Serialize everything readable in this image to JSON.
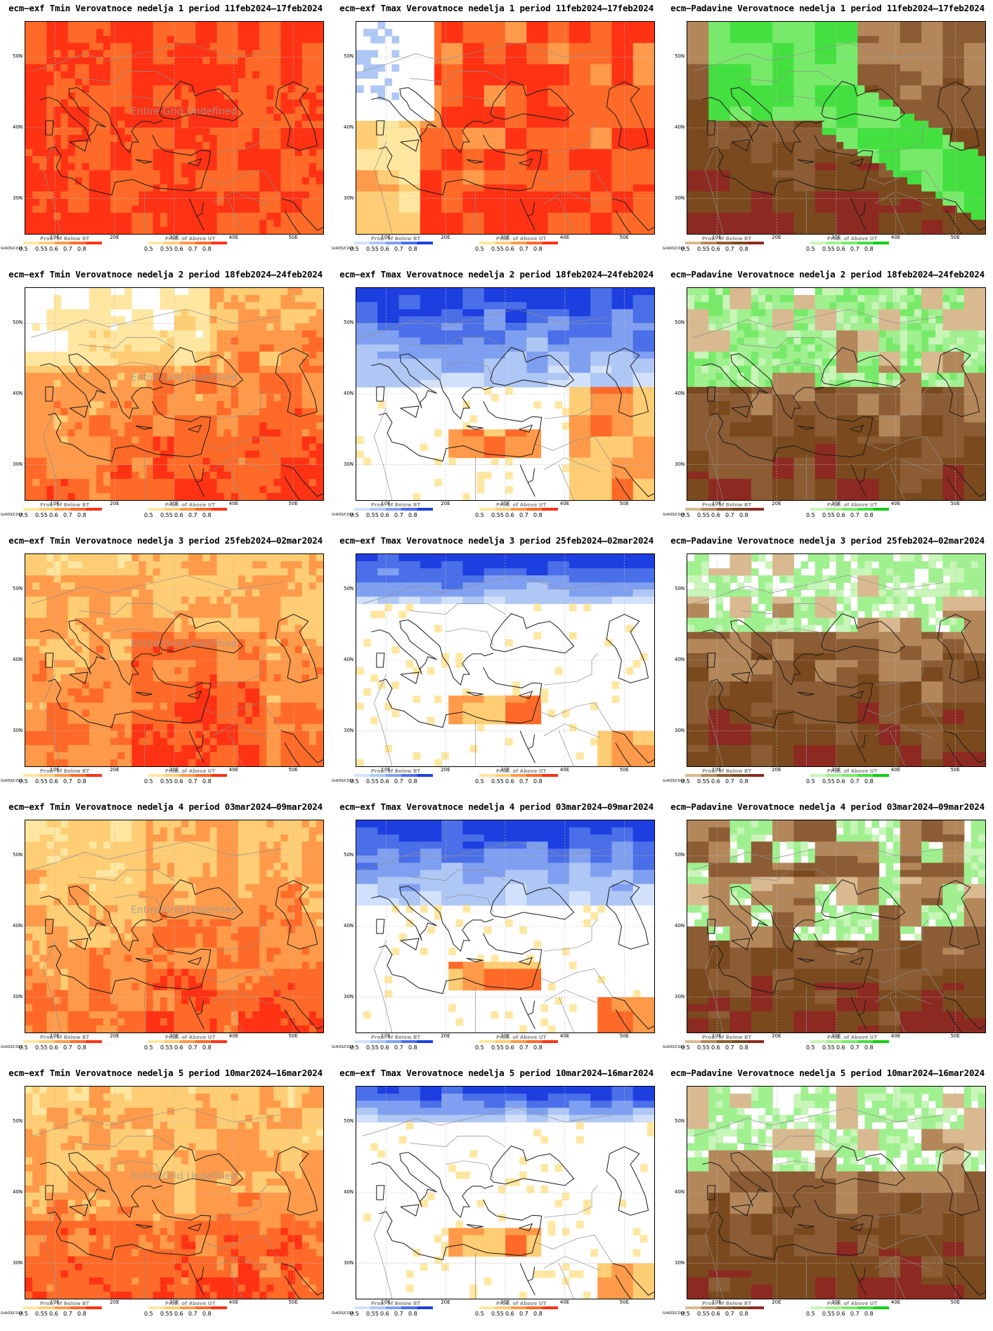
{
  "rows": [
    {
      "week": "1",
      "period": "11feb2024–17feb2024"
    },
    {
      "week": "2",
      "period": "18feb2024–24feb2024"
    },
    {
      "week": "3",
      "period": "25feb2024–02mar2024"
    },
    {
      "week": "4",
      "period": "03mar2024–09mar2024"
    },
    {
      "week": "5",
      "period": "10mar2024–16mar2024"
    }
  ],
  "panels": [
    {
      "title": "ecm−exf Tmin Verovatnoce nedelja 1 period 11feb2024–17feb2024",
      "variable": "tmin",
      "undefined_text": "Entire Grid Undefined",
      "below_label": "Prob. of Below BT",
      "above_label": "Prob. of Above UT"
    },
    {
      "title": "ecm−exf Tmax Verovatnoce nedelja 1 period 11feb2024–17feb2024",
      "variable": "tmax",
      "undefined_text": "",
      "below_label": "Prob. of Below BT",
      "above_label": "Prob. of Above UT"
    },
    {
      "title": "ecm−Padavine Verovatnoce nedelja 1 period 11feb2024–17feb2024",
      "variable": "precip",
      "undefined_text": "",
      "below_label": "Prob. of Below BT",
      "above_label": "Prob. of Above UT"
    },
    {
      "title": "ecm−exf Tmin Verovatnoce nedelja 2 period 18feb2024–24feb2024",
      "variable": "tmin",
      "undefined_text": "Entire Grid Undefined",
      "below_label": "Prob. of Below BT",
      "above_label": "Prob. of Above UT"
    },
    {
      "title": "ecm−exf Tmax Verovatnoce nedelja 2 period 18feb2024–24feb2024",
      "variable": "tmax",
      "undefined_text": "",
      "below_label": "Prob. of Below BT",
      "above_label": "Prob. of Above UT"
    },
    {
      "title": "ecm−Padavine Verovatnoce nedelja 2 period 18feb2024–24feb2024",
      "variable": "precip",
      "undefined_text": "",
      "below_label": "Prob. of Below BT",
      "above_label": "Prob. of Above UT"
    },
    {
      "title": "ecm−exf Tmin Verovatnoce nedelja 3 period 25feb2024–02mar2024",
      "variable": "tmin",
      "undefined_text": "Entire Grid Undefined",
      "below_label": "Prob. of Below BT",
      "above_label": "Prob. of Above UT"
    },
    {
      "title": "ecm−exf Tmax Verovatnoce nedelja 3 period 25feb2024–02mar2024",
      "variable": "tmax",
      "undefined_text": "",
      "below_label": "Prob. of Below BT",
      "above_label": "Prob. of Above UT"
    },
    {
      "title": "ecm−Padavine Verovatnoce nedelja 3 period 25feb2024–02mar2024",
      "variable": "precip",
      "undefined_text": "",
      "below_label": "Prob. of Below BT",
      "above_label": "Prob. of Above UT"
    },
    {
      "title": "ecm−exf Tmin Verovatnoce nedelja 4 period 03mar2024–09mar2024",
      "variable": "tmin",
      "undefined_text": "Entire Grid Undefined",
      "below_label": "Prob. of Below BT",
      "above_label": "Prob. of Above UT"
    },
    {
      "title": "ecm−exf Tmax Verovatnoce nedelja 4 period 03mar2024–09mar2024",
      "variable": "tmax",
      "undefined_text": "",
      "below_label": "Prob. of Below BT",
      "above_label": "Prob. of Above UT"
    },
    {
      "title": "ecm−Padavine Verovatnoce nedelja 4 period 03mar2024–09mar2024",
      "variable": "precip",
      "undefined_text": "",
      "below_label": "Prob. of Below BT",
      "above_label": "Prob. of Above UT"
    },
    {
      "title": "ecm−exf Tmin Verovatnoce nedelja 5 period 10mar2024–16mar2024",
      "variable": "tmin",
      "undefined_text": "Entire Grid Undefined",
      "below_label": "Prob. of Below BT",
      "above_label": "Prob. of Above UT"
    },
    {
      "title": "ecm−exf Tmax Verovatnoce nedelja 5 period 10mar2024–16mar2024",
      "variable": "tmax",
      "undefined_text": "",
      "below_label": "Prob. of Below BT",
      "above_label": "Prob. of Above UT"
    },
    {
      "title": "ecm−Padavine Verovatnoce nedelja 5 period 10mar2024–16mar2024",
      "variable": "precip",
      "undefined_text": "",
      "below_label": "Prob. of Below BT",
      "above_label": "Prob. of Above UT"
    }
  ],
  "axes": {
    "lat_labels": [
      "50N",
      "40N",
      "30N"
    ],
    "lon_labels": [
      "10E",
      "20E",
      "30E",
      "40E",
      "50E"
    ],
    "lat_values": [
      50,
      40,
      30
    ],
    "lon_values": [
      10,
      20,
      30,
      40,
      50
    ],
    "lon_range": [
      5,
      55
    ],
    "lat_range": [
      25,
      55
    ]
  },
  "legend": {
    "ticks": [
      "0.5",
      "0.55",
      "0.6",
      "0.7",
      "0.8"
    ],
    "credit": "GrADS/COLA",
    "tmin_below_colors": [
      "#ffe7a1",
      "#ffcd74",
      "#ff9a4a",
      "#ff6a28",
      "#ff3214"
    ],
    "tmin_above_colors": [
      "#ffe7a1",
      "#ffcd74",
      "#ff9a4a",
      "#ff6a28",
      "#ff3214"
    ],
    "tmax_below_colors": [
      "#d2e1fb",
      "#aec7f5",
      "#7f9ff0",
      "#4a6fe8",
      "#1e3fe0"
    ],
    "tmax_above_colors": [
      "#ffe7a1",
      "#ffcd74",
      "#ff9a4a",
      "#ff6a28",
      "#ff3214"
    ],
    "precip_below_colors": [
      "#d9b98f",
      "#b3875a",
      "#8c5c34",
      "#7a4a1e",
      "#8c2a22"
    ],
    "precip_above_colors": [
      "#c8f5b8",
      "#a0f090",
      "#78ea6a",
      "#44e040",
      "#10d010"
    ]
  }
}
